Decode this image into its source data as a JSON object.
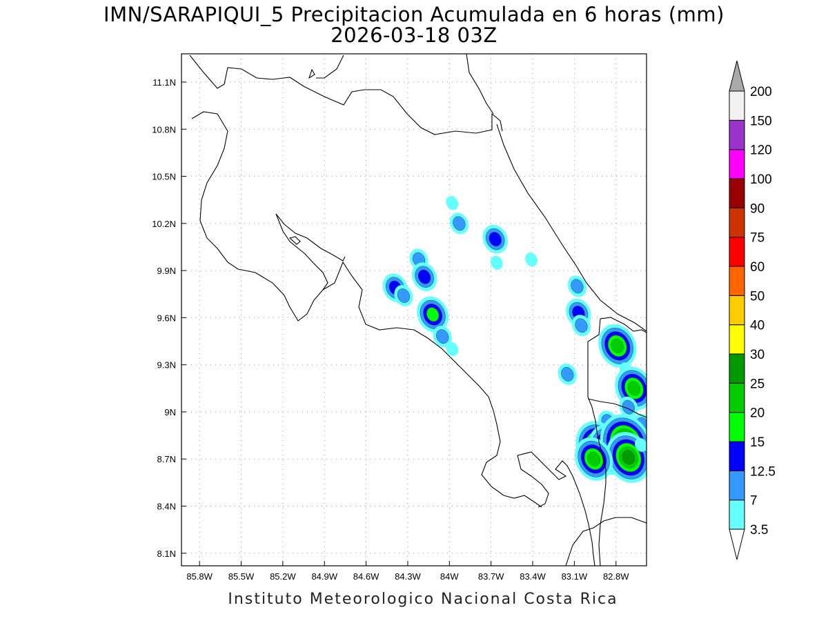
{
  "title": {
    "line1": "IMN/SARAPIQUI_5 Precipitacion Acumulada en 6 horas (mm)",
    "line2": "2026-03-18 03Z"
  },
  "footer": "Instituto Meteorologico Nacional Costa Rica",
  "map": {
    "lon_range": [
      -85.93,
      -82.58
    ],
    "lat_range": [
      8.02,
      11.28
    ],
    "lon_ticks": [
      {
        "v": -85.8,
        "label": "85.8W"
      },
      {
        "v": -85.5,
        "label": "85.5W"
      },
      {
        "v": -85.2,
        "label": "85.2W"
      },
      {
        "v": -84.9,
        "label": "84.9W"
      },
      {
        "v": -84.6,
        "label": "84.6W"
      },
      {
        "v": -84.3,
        "label": "84.3W"
      },
      {
        "v": -84.0,
        "label": "84W"
      },
      {
        "v": -83.7,
        "label": "83.7W"
      },
      {
        "v": -83.4,
        "label": "83.4W"
      },
      {
        "v": -83.1,
        "label": "83.1W"
      },
      {
        "v": -82.8,
        "label": "82.8W"
      }
    ],
    "lat_ticks": [
      {
        "v": 8.1,
        "label": "8.1N"
      },
      {
        "v": 8.4,
        "label": "8.4N"
      },
      {
        "v": 8.7,
        "label": "8.7N"
      },
      {
        "v": 9.0,
        "label": "9N"
      },
      {
        "v": 9.3,
        "label": "9.3N"
      },
      {
        "v": 9.6,
        "label": "9.6N"
      },
      {
        "v": 9.9,
        "label": "9.9N"
      },
      {
        "v": 10.2,
        "label": "10.2N"
      },
      {
        "v": 10.5,
        "label": "10.5N"
      },
      {
        "v": 10.8,
        "label": "10.8N"
      },
      {
        "v": 11.1,
        "label": "11.1N"
      }
    ],
    "grid": "dotted"
  },
  "colorbar": {
    "levels": [
      {
        "label": "3.5",
        "color": "#ffffff"
      },
      {
        "label": "7",
        "color": "#66ffff"
      },
      {
        "label": "12.5",
        "color": "#3399ff"
      },
      {
        "label": "15",
        "color": "#0000ff"
      },
      {
        "label": "20",
        "color": "#00ff00"
      },
      {
        "label": "25",
        "color": "#00cc00"
      },
      {
        "label": "30",
        "color": "#009900"
      },
      {
        "label": "40",
        "color": "#ffff00"
      },
      {
        "label": "50",
        "color": "#ffcc00"
      },
      {
        "label": "60",
        "color": "#ff6600"
      },
      {
        "label": "75",
        "color": "#ff0000"
      },
      {
        "label": "90",
        "color": "#cc3300"
      },
      {
        "label": "100",
        "color": "#990000"
      },
      {
        "label": "120",
        "color": "#ff00ff"
      },
      {
        "label": "150",
        "color": "#9933cc"
      },
      {
        "label": "200",
        "color": "#f2f2f2"
      }
    ],
    "top_arrow_color": "#aaaaaa",
    "bottom_arrow_color": "#ffffff"
  },
  "precip_cells": [
    {
      "lon": -84.39,
      "lat": 9.79,
      "value": 12.5
    },
    {
      "lon": -84.33,
      "lat": 9.74,
      "value": 7
    },
    {
      "lon": -84.22,
      "lat": 9.97,
      "value": 7
    },
    {
      "lon": -84.18,
      "lat": 9.86,
      "value": 12.5
    },
    {
      "lon": -84.12,
      "lat": 9.62,
      "value": 15
    },
    {
      "lon": -84.05,
      "lat": 9.48,
      "value": 7
    },
    {
      "lon": -83.98,
      "lat": 9.4,
      "value": 3.5
    },
    {
      "lon": -83.98,
      "lat": 10.33,
      "value": 3.5
    },
    {
      "lon": -83.93,
      "lat": 10.2,
      "value": 7
    },
    {
      "lon": -83.67,
      "lat": 10.1,
      "value": 12.5
    },
    {
      "lon": -83.66,
      "lat": 9.95,
      "value": 3.5
    },
    {
      "lon": -83.41,
      "lat": 9.97,
      "value": 3.5
    },
    {
      "lon": -83.08,
      "lat": 9.8,
      "value": 7
    },
    {
      "lon": -83.07,
      "lat": 9.63,
      "value": 12.5
    },
    {
      "lon": -83.05,
      "lat": 9.55,
      "value": 7
    },
    {
      "lon": -83.15,
      "lat": 9.24,
      "value": 7
    },
    {
      "lon": -82.79,
      "lat": 9.42,
      "value": 20
    },
    {
      "lon": -82.73,
      "lat": 9.27,
      "value": 3.5
    },
    {
      "lon": -82.67,
      "lat": 9.15,
      "value": 20
    },
    {
      "lon": -82.71,
      "lat": 9.03,
      "value": 7
    },
    {
      "lon": -82.61,
      "lat": 8.92,
      "value": 7
    },
    {
      "lon": -82.86,
      "lat": 8.94,
      "value": 7
    },
    {
      "lon": -82.93,
      "lat": 8.78,
      "value": 25
    },
    {
      "lon": -82.84,
      "lat": 8.76,
      "value": 25
    },
    {
      "lon": -82.73,
      "lat": 8.8,
      "value": 30
    },
    {
      "lon": -82.71,
      "lat": 8.71,
      "value": 25
    },
    {
      "lon": -82.96,
      "lat": 8.7,
      "value": 20
    },
    {
      "lon": -82.62,
      "lat": 8.79,
      "value": 3.5
    }
  ]
}
